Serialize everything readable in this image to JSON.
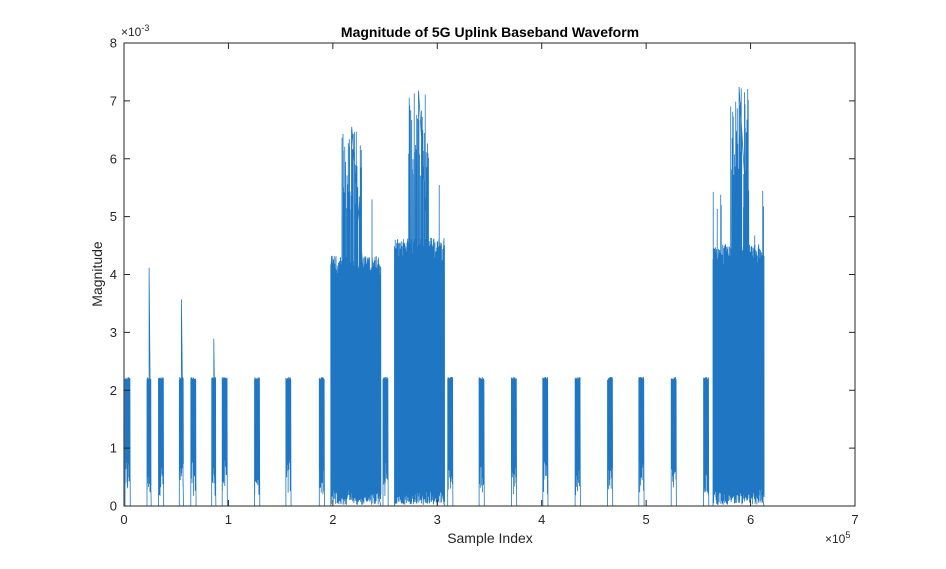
{
  "chart_data": {
    "type": "line",
    "title": "Magnitude of 5G Uplink Baseband Waveform",
    "xlabel": "Sample Index",
    "ylabel": "Magnitude",
    "x_multiplier_label": "×10^5",
    "y_multiplier_label": "×10^-3",
    "x_multiplier": 100000,
    "y_multiplier": 0.001,
    "xlim": [
      0,
      700000
    ],
    "ylim": [
      0,
      0.008
    ],
    "x_ticks": [
      0,
      1,
      2,
      3,
      4,
      5,
      6,
      7
    ],
    "y_ticks": [
      0,
      1,
      2,
      3,
      4,
      5,
      6,
      7,
      8
    ],
    "grid": false,
    "series": [
      {
        "color": "#1f77c4",
        "description_of_shape": "bursty magnitude signal",
        "narrow_bursts": [
          {
            "x_start": 1000,
            "x_end": 6000,
            "level": 0.00223
          },
          {
            "x_start": 22000,
            "x_end": 26000,
            "level": 0.00223,
            "peak": 0.00412
          },
          {
            "x_start": 33000,
            "x_end": 38000,
            "level": 0.00223
          },
          {
            "x_start": 53000,
            "x_end": 57000,
            "level": 0.00223,
            "peak": 0.00357
          },
          {
            "x_start": 64000,
            "x_end": 69000,
            "level": 0.00223
          },
          {
            "x_start": 84000,
            "x_end": 88000,
            "level": 0.00223,
            "peak": 0.00289
          },
          {
            "x_start": 94000,
            "x_end": 99000,
            "level": 0.00223
          },
          {
            "x_start": 125000,
            "x_end": 130000,
            "level": 0.00223
          },
          {
            "x_start": 155000,
            "x_end": 160000,
            "level": 0.00223
          },
          {
            "x_start": 187000,
            "x_end": 192000,
            "level": 0.00223
          },
          {
            "x_start": 248000,
            "x_end": 253000,
            "level": 0.00223
          },
          {
            "x_start": 310000,
            "x_end": 315000,
            "level": 0.00223
          },
          {
            "x_start": 340000,
            "x_end": 345000,
            "level": 0.00223
          },
          {
            "x_start": 371000,
            "x_end": 376000,
            "level": 0.00223
          },
          {
            "x_start": 401000,
            "x_end": 406000,
            "level": 0.00223
          },
          {
            "x_start": 432000,
            "x_end": 437000,
            "level": 0.00223
          },
          {
            "x_start": 463000,
            "x_end": 468000,
            "level": 0.00223
          },
          {
            "x_start": 493000,
            "x_end": 498000,
            "level": 0.00223
          },
          {
            "x_start": 524000,
            "x_end": 529000,
            "level": 0.00223
          },
          {
            "x_start": 555000,
            "x_end": 560000,
            "level": 0.00223
          }
        ],
        "dense_bursts": [
          {
            "x_start": 198000,
            "x_end": 246000,
            "typical_max": 0.0042,
            "peak": 0.00655,
            "peak_x": 218000
          },
          {
            "x_start": 259000,
            "x_end": 307000,
            "typical_max": 0.0045,
            "peak": 0.00718,
            "peak_x": 282000
          },
          {
            "x_start": 564000,
            "x_end": 613000,
            "typical_max": 0.0044,
            "peak": 0.00724,
            "peak_x": 589000
          }
        ]
      }
    ]
  }
}
